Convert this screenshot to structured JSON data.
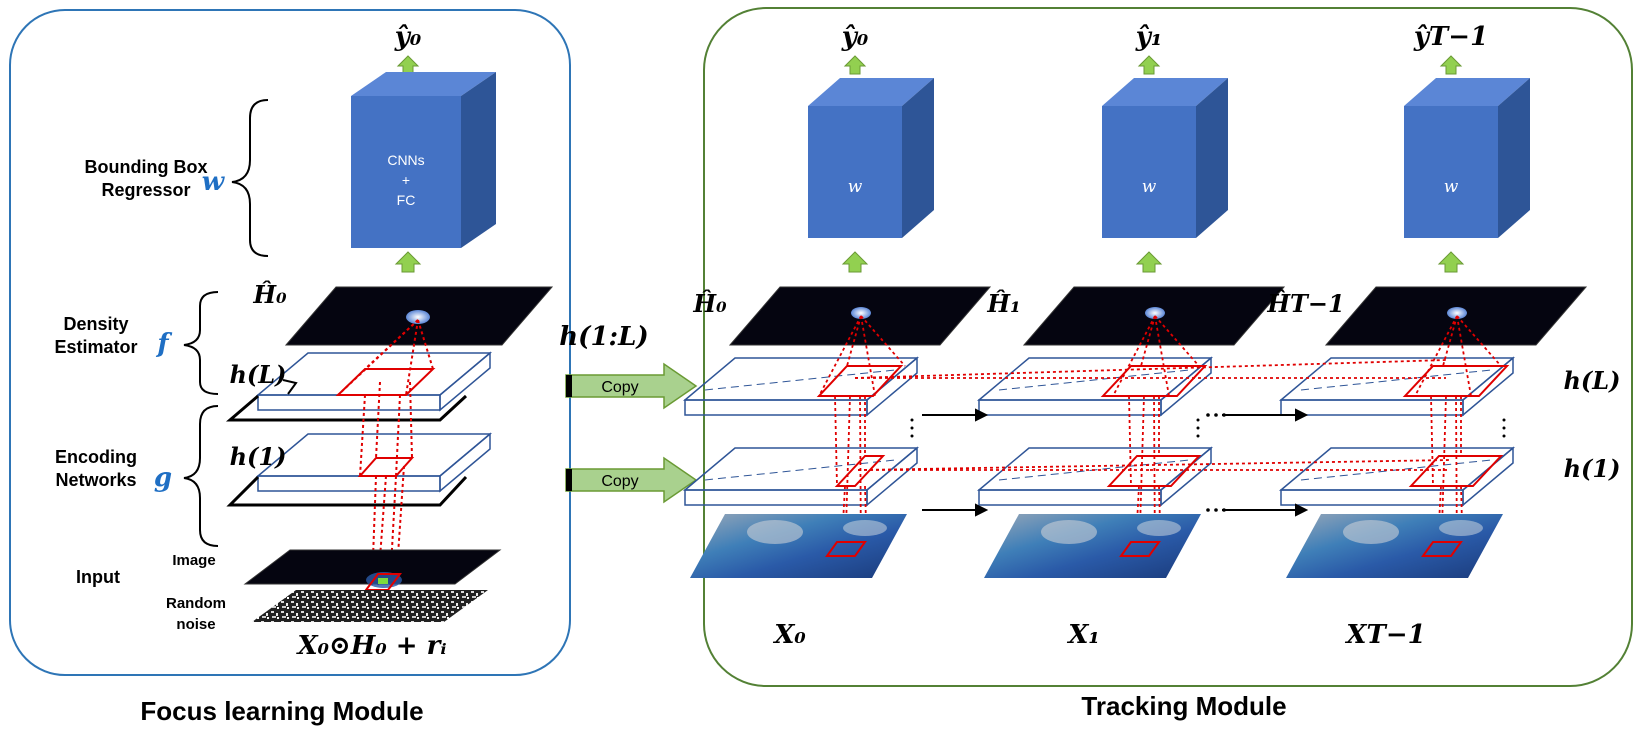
{
  "focus_module": {
    "title": "Focus learning Module",
    "output_label": "ŷ₀",
    "regressor": {
      "label_line1": "Bounding Box",
      "label_line2": "Regressor",
      "symbol": "w",
      "cube_line1": "CNNs",
      "cube_line2": "+",
      "cube_line3": "FC"
    },
    "density": {
      "label_line1": "Density",
      "label_line2": "Estimator",
      "symbol": "f",
      "map_label": "Ĥ₀"
    },
    "encoding": {
      "label_line1": "Encoding",
      "label_line2": "Networks",
      "symbol": "g",
      "layer_top": "h(L)",
      "layer_bottom": "h(1)"
    },
    "input": {
      "label": "Input",
      "image_label": "Image",
      "noise_label_line1": "Random",
      "noise_label_line2": "noise",
      "formula": "X₀⊙H₀ + rᵢ"
    }
  },
  "transfer": {
    "label": "h(1:L)",
    "copy_top": "Copy",
    "copy_bottom": "Copy"
  },
  "tracking_module": {
    "title": "Tracking Module",
    "cube_symbol": "w",
    "outputs": [
      "ŷ₀",
      "ŷ₁",
      "ŷT−1"
    ],
    "maps": [
      "Ĥ₀",
      "Ĥ₁",
      "ĤT−1"
    ],
    "inputs": [
      "X₀",
      "X₁",
      "XT−1"
    ],
    "layer_top": "h(L)",
    "layer_bottom": "h(1)"
  },
  "colors": {
    "cube_front": "#4472c4",
    "cube_top": "#5b86d6",
    "cube_side": "#2e5597",
    "arrow_green": "#92d050",
    "left_frame": "#2e75b6",
    "right_frame": "#538135",
    "red_lines": "#e00000",
    "layer_blue": "#2f5597",
    "symbol_blue": "#1f6fc4"
  }
}
